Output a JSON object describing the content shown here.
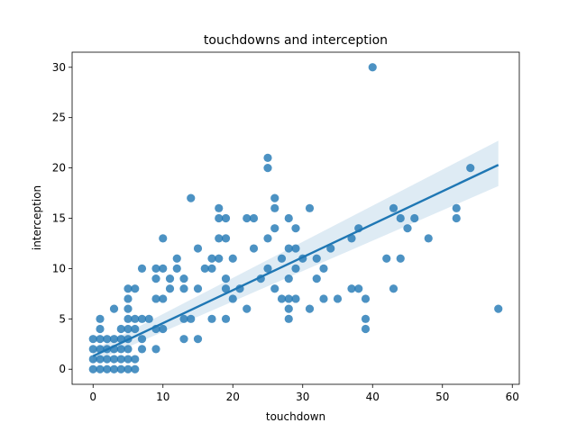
{
  "chart_data": {
    "type": "scatter",
    "title": "touchdowns and interception",
    "xlabel": "touchdown",
    "ylabel": "interception",
    "xlim": [
      -3,
      61
    ],
    "ylim": [
      -1.5,
      31.5
    ],
    "xticks": [
      0,
      10,
      20,
      30,
      40,
      50,
      60
    ],
    "yticks": [
      0,
      5,
      10,
      15,
      20,
      25,
      30
    ],
    "grid": false,
    "color": "#1f77b4",
    "regression": {
      "x": [
        0,
        58
      ],
      "y": [
        1.3,
        20.3
      ],
      "ci_at_start": [
        0.7,
        1.9
      ],
      "ci_at_end": [
        18.2,
        22.7
      ]
    },
    "points": [
      [
        40,
        30
      ],
      [
        25,
        21
      ],
      [
        25,
        20
      ],
      [
        54,
        20
      ],
      [
        14,
        17
      ],
      [
        26,
        17
      ],
      [
        18,
        16
      ],
      [
        26,
        16
      ],
      [
        31,
        16
      ],
      [
        43,
        16
      ],
      [
        52,
        16
      ],
      [
        18,
        15
      ],
      [
        19,
        15
      ],
      [
        22,
        15
      ],
      [
        23,
        15
      ],
      [
        28,
        15
      ],
      [
        44,
        15
      ],
      [
        46,
        15
      ],
      [
        52,
        15
      ],
      [
        26,
        14
      ],
      [
        29,
        14
      ],
      [
        38,
        14
      ],
      [
        45,
        14
      ],
      [
        10,
        13
      ],
      [
        18,
        13
      ],
      [
        19,
        13
      ],
      [
        25,
        13
      ],
      [
        37,
        13
      ],
      [
        48,
        13
      ],
      [
        23,
        12
      ],
      [
        28,
        12
      ],
      [
        29,
        12
      ],
      [
        15,
        12
      ],
      [
        34,
        12
      ],
      [
        12,
        11
      ],
      [
        17,
        11
      ],
      [
        18,
        11
      ],
      [
        20,
        11
      ],
      [
        27,
        11
      ],
      [
        30,
        11
      ],
      [
        32,
        11
      ],
      [
        42,
        11
      ],
      [
        44,
        11
      ],
      [
        9,
        10
      ],
      [
        10,
        10
      ],
      [
        7,
        10
      ],
      [
        12,
        10
      ],
      [
        16,
        10
      ],
      [
        17,
        10
      ],
      [
        25,
        10
      ],
      [
        29,
        10
      ],
      [
        33,
        10
      ],
      [
        9,
        9
      ],
      [
        11,
        9
      ],
      [
        13,
        9
      ],
      [
        19,
        9
      ],
      [
        24,
        9
      ],
      [
        28,
        9
      ],
      [
        32,
        9
      ],
      [
        5,
        8
      ],
      [
        6,
        8
      ],
      [
        11,
        8
      ],
      [
        13,
        8
      ],
      [
        15,
        8
      ],
      [
        19,
        8
      ],
      [
        21,
        8
      ],
      [
        26,
        8
      ],
      [
        37,
        8
      ],
      [
        38,
        8
      ],
      [
        43,
        8
      ],
      [
        5,
        7
      ],
      [
        9,
        7
      ],
      [
        10,
        7
      ],
      [
        20,
        7
      ],
      [
        27,
        7
      ],
      [
        28,
        7
      ],
      [
        29,
        7
      ],
      [
        33,
        7
      ],
      [
        35,
        7
      ],
      [
        39,
        7
      ],
      [
        3,
        6
      ],
      [
        5,
        6
      ],
      [
        22,
        6
      ],
      [
        28,
        6
      ],
      [
        31,
        6
      ],
      [
        58,
        6
      ],
      [
        1,
        5
      ],
      [
        5,
        5
      ],
      [
        6,
        5
      ],
      [
        7,
        5
      ],
      [
        8,
        5
      ],
      [
        13,
        5
      ],
      [
        14,
        5
      ],
      [
        17,
        5
      ],
      [
        19,
        5
      ],
      [
        28,
        5
      ],
      [
        39,
        5
      ],
      [
        1,
        4
      ],
      [
        4,
        4
      ],
      [
        5,
        4
      ],
      [
        6,
        4
      ],
      [
        9,
        4
      ],
      [
        10,
        4
      ],
      [
        39,
        4
      ],
      [
        0,
        3
      ],
      [
        1,
        3
      ],
      [
        2,
        3
      ],
      [
        3,
        3
      ],
      [
        4,
        3
      ],
      [
        5,
        3
      ],
      [
        7,
        3
      ],
      [
        13,
        3
      ],
      [
        15,
        3
      ],
      [
        0,
        2
      ],
      [
        1,
        2
      ],
      [
        2,
        2
      ],
      [
        3,
        2
      ],
      [
        4,
        2
      ],
      [
        5,
        2
      ],
      [
        7,
        2
      ],
      [
        9,
        2
      ],
      [
        0,
        1
      ],
      [
        1,
        1
      ],
      [
        2,
        1
      ],
      [
        3,
        1
      ],
      [
        4,
        1
      ],
      [
        5,
        1
      ],
      [
        6,
        1
      ],
      [
        0,
        0
      ],
      [
        1,
        0
      ],
      [
        2,
        0
      ],
      [
        3,
        0
      ],
      [
        4,
        0
      ],
      [
        5,
        0
      ],
      [
        6,
        0
      ]
    ]
  }
}
